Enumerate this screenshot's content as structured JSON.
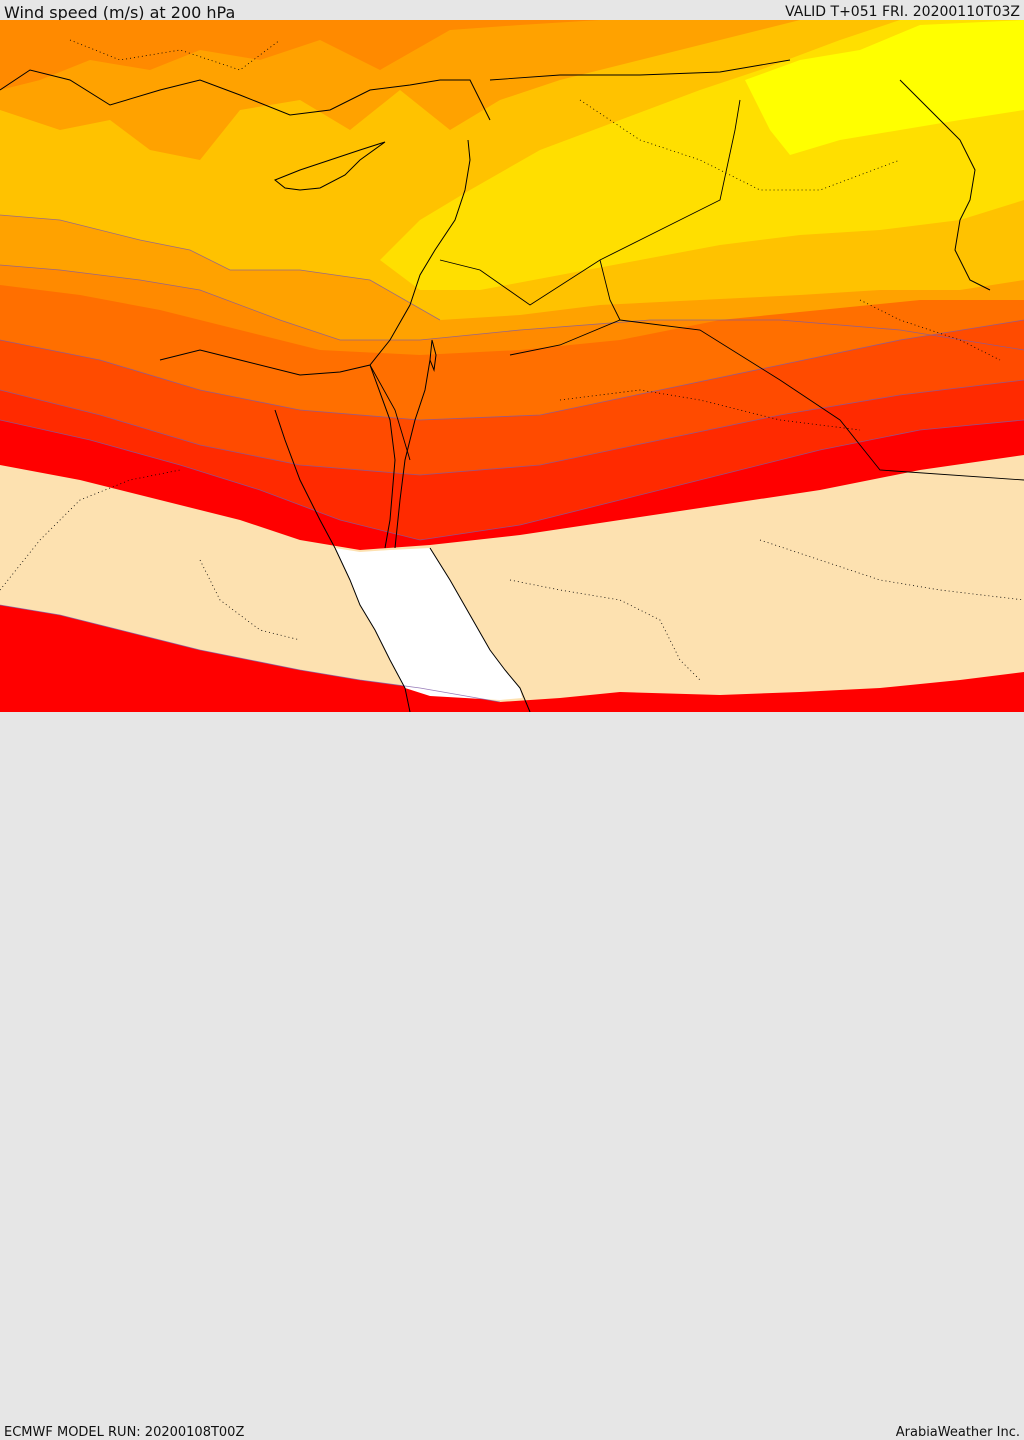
{
  "header": {
    "title": "Wind speed (m/s) at 200 hPa",
    "valid": "VALID T+051 FRI. 20200110T03Z"
  },
  "footer": {
    "model_run": "ECMWF MODEL RUN: 20200108T00Z",
    "credit": "ArabiaWeather Inc."
  },
  "colors": {
    "band_yellow": "#ffff00",
    "band_gold": "#ffdf00",
    "band_amber": "#ffc200",
    "band_orange_light": "#ffa200",
    "band_orange": "#ff8a00",
    "band_orange_dark": "#ff6f00",
    "band_red_orange": "#ff4b00",
    "band_red_light": "#ff2a00",
    "band_red": "#ff0000",
    "weak_wind": "#fde1b0",
    "sea_unshaded": "#ffffff",
    "coastline": "#000000",
    "contour": "#7e5ba8"
  }
}
